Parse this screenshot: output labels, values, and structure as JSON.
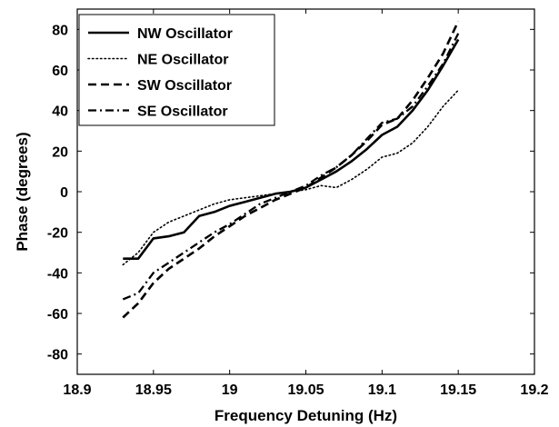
{
  "chart_data": {
    "type": "line",
    "title": "",
    "xlabel": "Frequency Detuning (Hz)",
    "ylabel": "Phase (degrees)",
    "xlim": [
      18.9,
      19.2
    ],
    "ylim": [
      -90,
      90
    ],
    "xticks": [
      18.9,
      18.95,
      19,
      19.05,
      19.1,
      19.15,
      19.2
    ],
    "xtick_labels": [
      "18.9",
      "18.95",
      "19",
      "19.05",
      "19.1",
      "19.15",
      "19.2"
    ],
    "yticks": [
      -80,
      -60,
      -40,
      -20,
      0,
      20,
      40,
      60,
      80
    ],
    "ytick_labels": [
      "-80",
      "-60",
      "-40",
      "-20",
      "0",
      "20",
      "40",
      "60",
      "80"
    ],
    "grid": false,
    "legend_position": "top-left",
    "series": [
      {
        "name": "NW Oscillator",
        "style": "solid",
        "x": [
          18.93,
          18.94,
          18.95,
          18.96,
          18.97,
          18.98,
          18.99,
          19.0,
          19.01,
          19.02,
          19.03,
          19.04,
          19.05,
          19.06,
          19.07,
          19.08,
          19.09,
          19.1,
          19.11,
          19.12,
          19.13,
          19.14,
          19.15
        ],
        "y": [
          -33,
          -33,
          -23,
          -22,
          -20,
          -12,
          -10,
          -7,
          -5,
          -3,
          -1,
          0,
          2,
          6,
          10,
          15,
          21,
          28,
          32,
          40,
          50,
          62,
          75
        ]
      },
      {
        "name": "NE Oscillator",
        "style": "dotted",
        "x": [
          18.93,
          18.94,
          18.95,
          18.96,
          18.97,
          18.98,
          18.99,
          19.0,
          19.01,
          19.02,
          19.03,
          19.04,
          19.05,
          19.06,
          19.07,
          19.08,
          19.09,
          19.1,
          19.11,
          19.12,
          19.13,
          19.14,
          19.15
        ],
        "y": [
          -36,
          -30,
          -20,
          -15,
          -12,
          -9,
          -6,
          -4,
          -3,
          -2,
          -1,
          0,
          1,
          3,
          2,
          6,
          11,
          17,
          19,
          24,
          32,
          42,
          50
        ]
      },
      {
        "name": "SW Oscillator",
        "style": "dashed",
        "x": [
          18.93,
          18.94,
          18.95,
          18.96,
          18.97,
          18.98,
          18.99,
          19.0,
          19.01,
          19.02,
          19.03,
          19.04,
          19.05,
          19.06,
          19.07,
          19.08,
          19.09,
          19.1,
          19.11,
          19.12,
          19.13,
          19.14,
          19.15
        ],
        "y": [
          -62,
          -55,
          -45,
          -38,
          -33,
          -28,
          -22,
          -17,
          -12,
          -8,
          -4,
          -1,
          2,
          7,
          12,
          18,
          25,
          33,
          36,
          45,
          56,
          68,
          84
        ]
      },
      {
        "name": "SE Oscillator",
        "style": "dashdot",
        "x": [
          18.93,
          18.94,
          18.95,
          18.96,
          18.97,
          18.98,
          18.99,
          19.0,
          19.01,
          19.02,
          19.03,
          19.04,
          19.05,
          19.06,
          19.07,
          19.08,
          19.09,
          19.1,
          19.11,
          19.12,
          19.13,
          19.14,
          19.15
        ],
        "y": [
          -53,
          -50,
          -40,
          -35,
          -30,
          -25,
          -20,
          -16,
          -11,
          -6,
          -3,
          0,
          3,
          8,
          12,
          18,
          26,
          34,
          36,
          42,
          52,
          63,
          78
        ]
      }
    ]
  }
}
